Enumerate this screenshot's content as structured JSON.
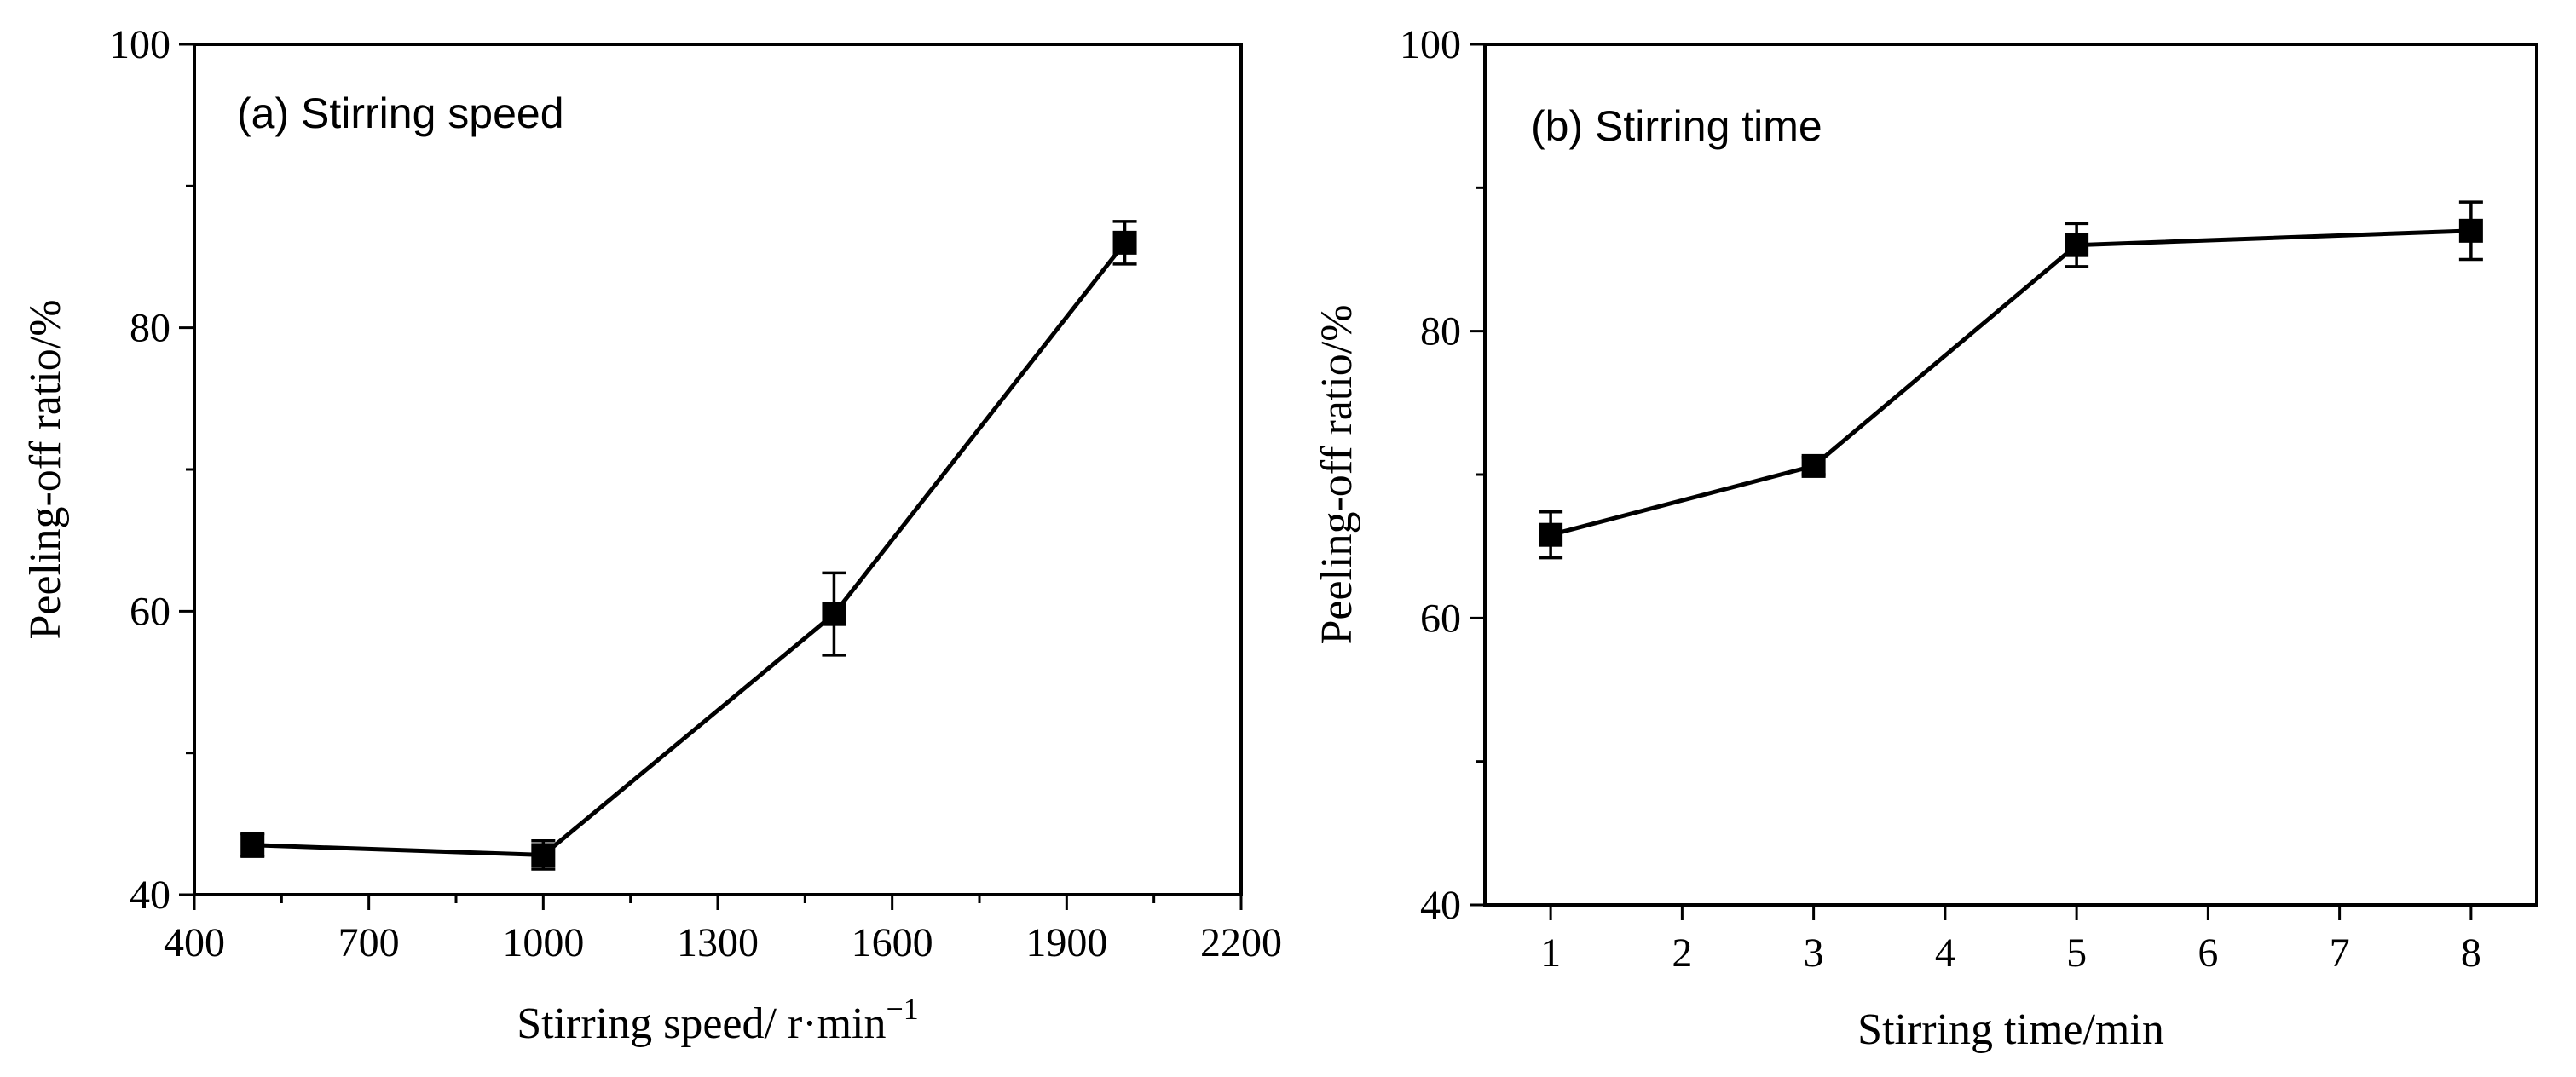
{
  "chart_data": [
    {
      "id": "a",
      "type": "line",
      "title": "(a) Stirring speed",
      "xlabel": "Stirring speed/ r·min",
      "xlabel_superscript": "−1",
      "ylabel": "Peeling-off ratio/%",
      "xlim": [
        400,
        2200
      ],
      "ylim": [
        40,
        100
      ],
      "xticks": [
        400,
        700,
        1000,
        1300,
        1600,
        1900,
        2200
      ],
      "xticks_minor": [
        550,
        850,
        1150,
        1450,
        1750,
        2050
      ],
      "yticks": [
        40,
        60,
        80,
        100
      ],
      "yticks_minor": [
        50,
        70,
        90
      ],
      "series": [
        {
          "name": "Peeling-off ratio",
          "x": [
            500,
            1000,
            1500,
            2000
          ],
          "y": [
            43.5,
            42.8,
            59.8,
            86.0
          ],
          "yerr": [
            0.8,
            1.0,
            2.9,
            1.5
          ]
        }
      ]
    },
    {
      "id": "b",
      "type": "line",
      "title": "(b) Stirring time",
      "xlabel": "Stirring time/min",
      "xlabel_superscript": "",
      "ylabel": "Peeling-off ratio/%",
      "xlim": [
        0.5,
        8.5
      ],
      "ylim": [
        40,
        100
      ],
      "xticks": [
        1,
        2,
        3,
        4,
        5,
        6,
        7,
        8
      ],
      "xticks_minor": [],
      "yticks": [
        40,
        60,
        80,
        100
      ],
      "yticks_minor": [
        50,
        70,
        90
      ],
      "series": [
        {
          "name": "Peeling-off ratio",
          "x": [
            1,
            3,
            5,
            8
          ],
          "y": [
            65.8,
            70.6,
            86.0,
            87.0
          ],
          "yerr": [
            1.6,
            0.6,
            1.5,
            2.0
          ]
        }
      ]
    }
  ]
}
